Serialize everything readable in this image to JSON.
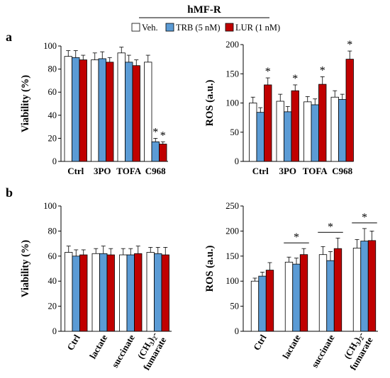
{
  "header": {
    "title": "hMF-R",
    "legend": [
      {
        "name": "Veh.",
        "color": "#ffffff"
      },
      {
        "name": "TRB (5 nM)",
        "color": "#5b9bd5"
      },
      {
        "name": "LUR (1 nM)",
        "color": "#c00000"
      }
    ]
  },
  "panel_labels": [
    "a",
    "b"
  ],
  "chart_data": [
    {
      "type": "bar",
      "panel": "a",
      "categories": [
        "Ctrl",
        "3PO",
        "TOFA",
        "C968"
      ],
      "ylabel": "Viability (%)",
      "ylim": [
        0,
        100
      ],
      "yticks": [
        0,
        20,
        40,
        60,
        80,
        100
      ],
      "grid": false,
      "series": [
        {
          "name": "Veh.",
          "values": [
            91,
            88,
            94,
            86
          ],
          "errors": [
            5,
            6,
            5,
            6
          ]
        },
        {
          "name": "TRB (5 nM)",
          "values": [
            90,
            89,
            86,
            17
          ],
          "errors": [
            6,
            6,
            6,
            3
          ]
        },
        {
          "name": "LUR (1 nM)",
          "values": [
            88,
            86,
            83,
            15
          ],
          "errors": [
            4,
            4,
            5,
            2
          ]
        }
      ],
      "significance": [
        {
          "category": "C968",
          "series": "TRB (5 nM)",
          "label": "*"
        },
        {
          "category": "C968",
          "series": "LUR (1 nM)",
          "label": "*"
        }
      ]
    },
    {
      "type": "bar",
      "panel": "a",
      "categories": [
        "Ctrl",
        "3PO",
        "TOFA",
        "C968"
      ],
      "ylabel": "ROS (a.u.)",
      "ylim": [
        0,
        200
      ],
      "yticks": [
        0,
        50,
        100,
        150,
        200
      ],
      "grid": false,
      "series": [
        {
          "name": "Veh.",
          "values": [
            100,
            103,
            102,
            110
          ],
          "errors": [
            10,
            12,
            9,
            11
          ]
        },
        {
          "name": "TRB (5 nM)",
          "values": [
            84,
            85,
            97,
            106
          ],
          "errors": [
            8,
            9,
            10,
            9
          ]
        },
        {
          "name": "LUR (1 nM)",
          "values": [
            131,
            121,
            132,
            175
          ],
          "errors": [
            12,
            10,
            13,
            14
          ]
        }
      ],
      "significance": [
        {
          "category": "Ctrl",
          "series": "LUR (1 nM)",
          "label": "*"
        },
        {
          "category": "3PO",
          "series": "LUR (1 nM)",
          "label": "*"
        },
        {
          "category": "TOFA",
          "series": "LUR (1 nM)",
          "label": "*"
        },
        {
          "category": "C968",
          "series": "LUR (1 nM)",
          "label": "*"
        }
      ]
    },
    {
      "type": "bar",
      "panel": "b",
      "categories": [
        "Ctrl",
        "lactate",
        "succinate",
        "(CH3)2-fumarate"
      ],
      "ylabel": "Viability (%)",
      "ylim": [
        0,
        100
      ],
      "yticks": [
        0,
        20,
        40,
        60,
        80,
        100
      ],
      "grid": false,
      "series": [
        {
          "name": "Veh.",
          "values": [
            63,
            62,
            61,
            63
          ],
          "errors": [
            5,
            4,
            5,
            4
          ]
        },
        {
          "name": "TRB (5 nM)",
          "values": [
            60,
            62,
            61,
            62
          ],
          "errors": [
            5,
            6,
            5,
            5
          ]
        },
        {
          "name": "LUR (1 nM)",
          "values": [
            61,
            61,
            62,
            61
          ],
          "errors": [
            4,
            5,
            6,
            6
          ]
        }
      ]
    },
    {
      "type": "bar",
      "panel": "b",
      "categories": [
        "Ctrl",
        "lactate",
        "succinate",
        "(CH3)2-fumarate"
      ],
      "ylabel": "ROS (a.u.)",
      "ylim": [
        0,
        250
      ],
      "yticks": [
        0,
        50,
        100,
        150,
        200,
        250
      ],
      "grid": false,
      "series": [
        {
          "name": "Veh.",
          "values": [
            100,
            138,
            153,
            166
          ],
          "errors": [
            6,
            10,
            16,
            17
          ]
        },
        {
          "name": "TRB (5 nM)",
          "values": [
            110,
            134,
            141,
            180
          ],
          "errors": [
            8,
            12,
            18,
            25
          ]
        },
        {
          "name": "LUR (1 nM)",
          "values": [
            122,
            153,
            165,
            181
          ],
          "errors": [
            15,
            12,
            21,
            19
          ]
        }
      ],
      "significance_brackets": [
        {
          "category": "lactate",
          "label": "*"
        },
        {
          "category": "succinate",
          "label": "*"
        },
        {
          "category": "(CH3)2-fumarate",
          "label": "*"
        }
      ]
    }
  ]
}
